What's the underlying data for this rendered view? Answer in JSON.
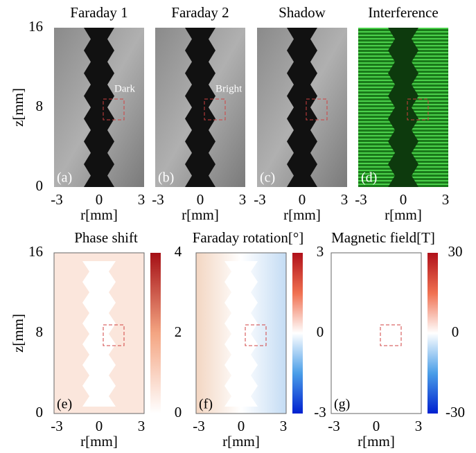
{
  "ylabel": "z[mm]",
  "xlabel": "r[mm]",
  "top_row": {
    "yticks": [
      16,
      8,
      0
    ],
    "xticks": [
      -3,
      0,
      3
    ],
    "panels": [
      {
        "title": "Faraday 1",
        "label": "(a)",
        "annotation": "Dark"
      },
      {
        "title": "Faraday 2",
        "label": "(b)",
        "annotation": "Bright"
      },
      {
        "title": "Shadow",
        "label": "(c)"
      },
      {
        "title": "Interference",
        "label": "(d)"
      }
    ]
  },
  "bottom_row": {
    "yticks": [
      16,
      8,
      0
    ],
    "xticks": [
      -3,
      0,
      3
    ],
    "panels": [
      {
        "title": "Phase shift",
        "label": "(e)",
        "colorbar_ticks": [
          4,
          2,
          0
        ]
      },
      {
        "title": "Faraday rotation[°]",
        "label": "(f)",
        "colorbar_ticks": [
          3,
          0,
          -3
        ]
      },
      {
        "title": "Magnetic field[T]",
        "label": "(g)",
        "colorbar_ticks": [
          30,
          0,
          -30
        ]
      }
    ]
  }
}
